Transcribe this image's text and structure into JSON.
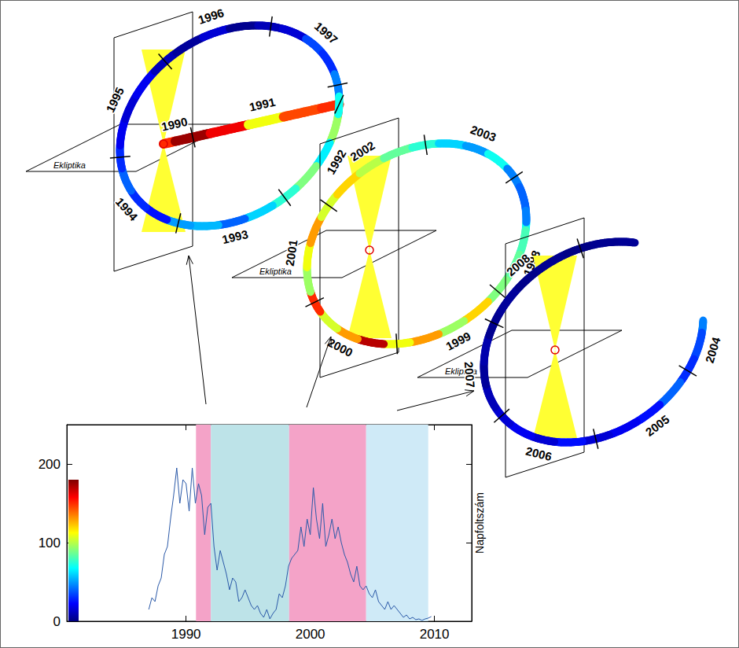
{
  "chart_data": {
    "type": "line",
    "x": [
      1987,
      1987.25,
      1987.5,
      1987.75,
      1988,
      1988.25,
      1988.5,
      1988.75,
      1989,
      1989.25,
      1989.5,
      1989.75,
      1990,
      1990.25,
      1990.5,
      1990.75,
      1991,
      1991.25,
      1991.5,
      1991.75,
      1992,
      1992.25,
      1992.5,
      1992.75,
      1993,
      1993.25,
      1993.5,
      1993.75,
      1994,
      1994.25,
      1994.5,
      1994.75,
      1995,
      1995.25,
      1995.5,
      1995.75,
      1996,
      1996.25,
      1996.5,
      1996.75,
      1997,
      1997.25,
      1997.5,
      1997.75,
      1998,
      1998.25,
      1998.5,
      1998.75,
      1999,
      1999.25,
      1999.5,
      1999.75,
      2000,
      2000.25,
      2000.5,
      2000.75,
      2001,
      2001.25,
      2001.5,
      2001.75,
      2002,
      2002.25,
      2002.5,
      2002.75,
      2003,
      2003.25,
      2003.5,
      2003.75,
      2004,
      2004.25,
      2004.5,
      2004.75,
      2005,
      2005.25,
      2005.5,
      2005.75,
      2006,
      2006.25,
      2006.5,
      2006.75,
      2007,
      2007.25,
      2007.5,
      2007.75,
      2008,
      2008.25,
      2008.5,
      2008.75,
      2009,
      2009.25,
      2009.5,
      2009.75
    ],
    "values": [
      15,
      30,
      25,
      45,
      55,
      85,
      95,
      130,
      160,
      195,
      150,
      180,
      175,
      140,
      195,
      150,
      175,
      160,
      110,
      145,
      150,
      95,
      65,
      90,
      75,
      60,
      40,
      55,
      50,
      25,
      30,
      40,
      30,
      20,
      15,
      20,
      10,
      5,
      15,
      3,
      10,
      15,
      35,
      30,
      45,
      70,
      80,
      85,
      90,
      120,
      95,
      130,
      110,
      170,
      130,
      105,
      150,
      95,
      110,
      130,
      105,
      120,
      100,
      85,
      75,
      60,
      50,
      70,
      45,
      40,
      45,
      35,
      30,
      40,
      25,
      20,
      15,
      25,
      15,
      20,
      15,
      10,
      5,
      8,
      3,
      5,
      2,
      3,
      1,
      3,
      4,
      6
    ],
    "color": "#2c5aa8",
    "y_label": "Napfoltszám",
    "xlim": [
      1980.4,
      2013
    ],
    "xticks": [
      1990,
      2000,
      2010
    ],
    "ylim": [
      0,
      250
    ],
    "yticks": [
      0,
      100,
      200
    ],
    "grid": false,
    "bands": [
      {
        "from": 1990.8,
        "to": 1992.0,
        "color": "#f4a3c8"
      },
      {
        "from": 1992.0,
        "to": 1998.3,
        "color": "#bde3e8"
      },
      {
        "from": 1998.3,
        "to": 2004.5,
        "color": "#f4a3c8"
      },
      {
        "from": 2004.5,
        "to": 2009.5,
        "color": "#cfeaf7"
      }
    ],
    "colorbar": {
      "range": [
        0,
        180
      ]
    }
  },
  "diagrams": [
    {
      "plane_label": "Ekliptika",
      "from": 1990.8,
      "transfer_end": 1992.0,
      "to": 1998.3,
      "years": [
        1990,
        1991,
        1992,
        1993,
        1994,
        1995,
        1996,
        1997
      ]
    },
    {
      "plane_label": "Ekliptika",
      "from": 1998.3,
      "to": 2004.5,
      "years": [
        1998,
        1999,
        2000,
        2001,
        2002,
        2003
      ]
    },
    {
      "plane_label": "Ekliptika",
      "from": 2004.5,
      "to": 2009.5,
      "years": [
        2004,
        2005,
        2006,
        2007,
        2008
      ]
    }
  ]
}
